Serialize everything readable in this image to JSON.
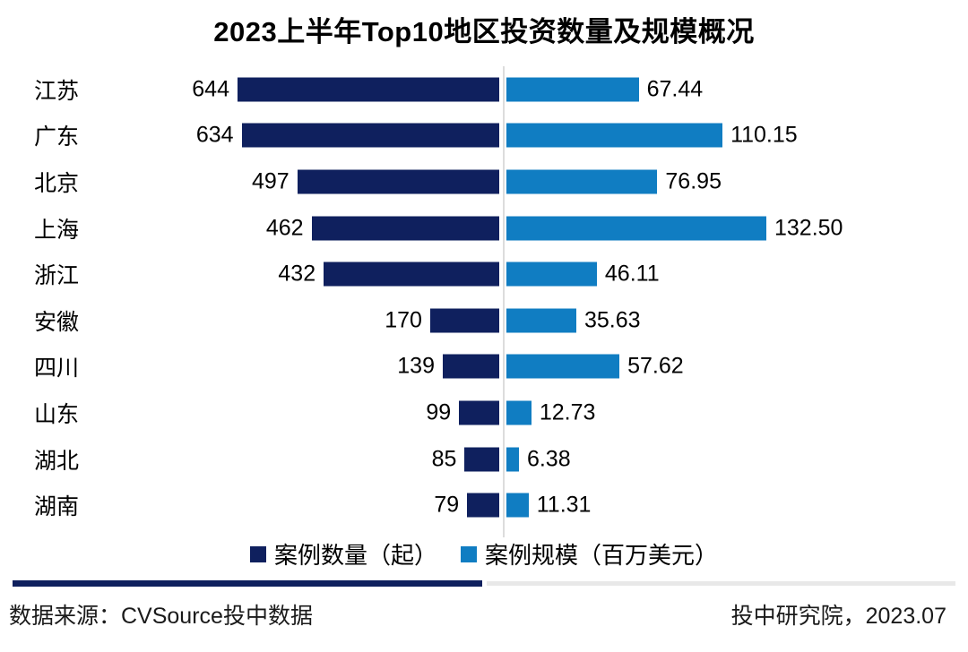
{
  "chart_data": {
    "type": "bar",
    "orientation": "horizontal-diverging",
    "title": "2023上半年Top10地区投资数量及规模概况",
    "categories": [
      "江苏",
      "广东",
      "北京",
      "上海",
      "浙江",
      "安徽",
      "四川",
      "山东",
      "湖北",
      "湖南"
    ],
    "series": [
      {
        "name": "案例数量（起）",
        "side": "left",
        "color": "#0F205E",
        "values": [
          644,
          634,
          497,
          462,
          432,
          170,
          139,
          99,
          85,
          79
        ],
        "labels": [
          "644",
          "634",
          "497",
          "462",
          "432",
          "170",
          "139",
          "99",
          "85",
          "79"
        ]
      },
      {
        "name": "案例规模（百万美元）",
        "side": "right",
        "color": "#107DC2",
        "values": [
          67.44,
          110.15,
          76.95,
          132.5,
          46.11,
          35.63,
          57.62,
          12.73,
          6.38,
          11.31
        ],
        "labels": [
          "67.44",
          "110.15",
          "76.95",
          "132.50",
          "46.11",
          "35.63",
          "57.62",
          "12.73",
          "6.38",
          "11.31"
        ]
      }
    ],
    "legend_position": "bottom",
    "grid": false,
    "axis_divider": true,
    "value_labels_shown": true
  },
  "footer": {
    "source": "数据来源：CVSource投中数据",
    "credit": "投中研究院，2023.07",
    "separator_dark_color": "#0F205E",
    "separator_light_color": "#E8E8E8"
  }
}
